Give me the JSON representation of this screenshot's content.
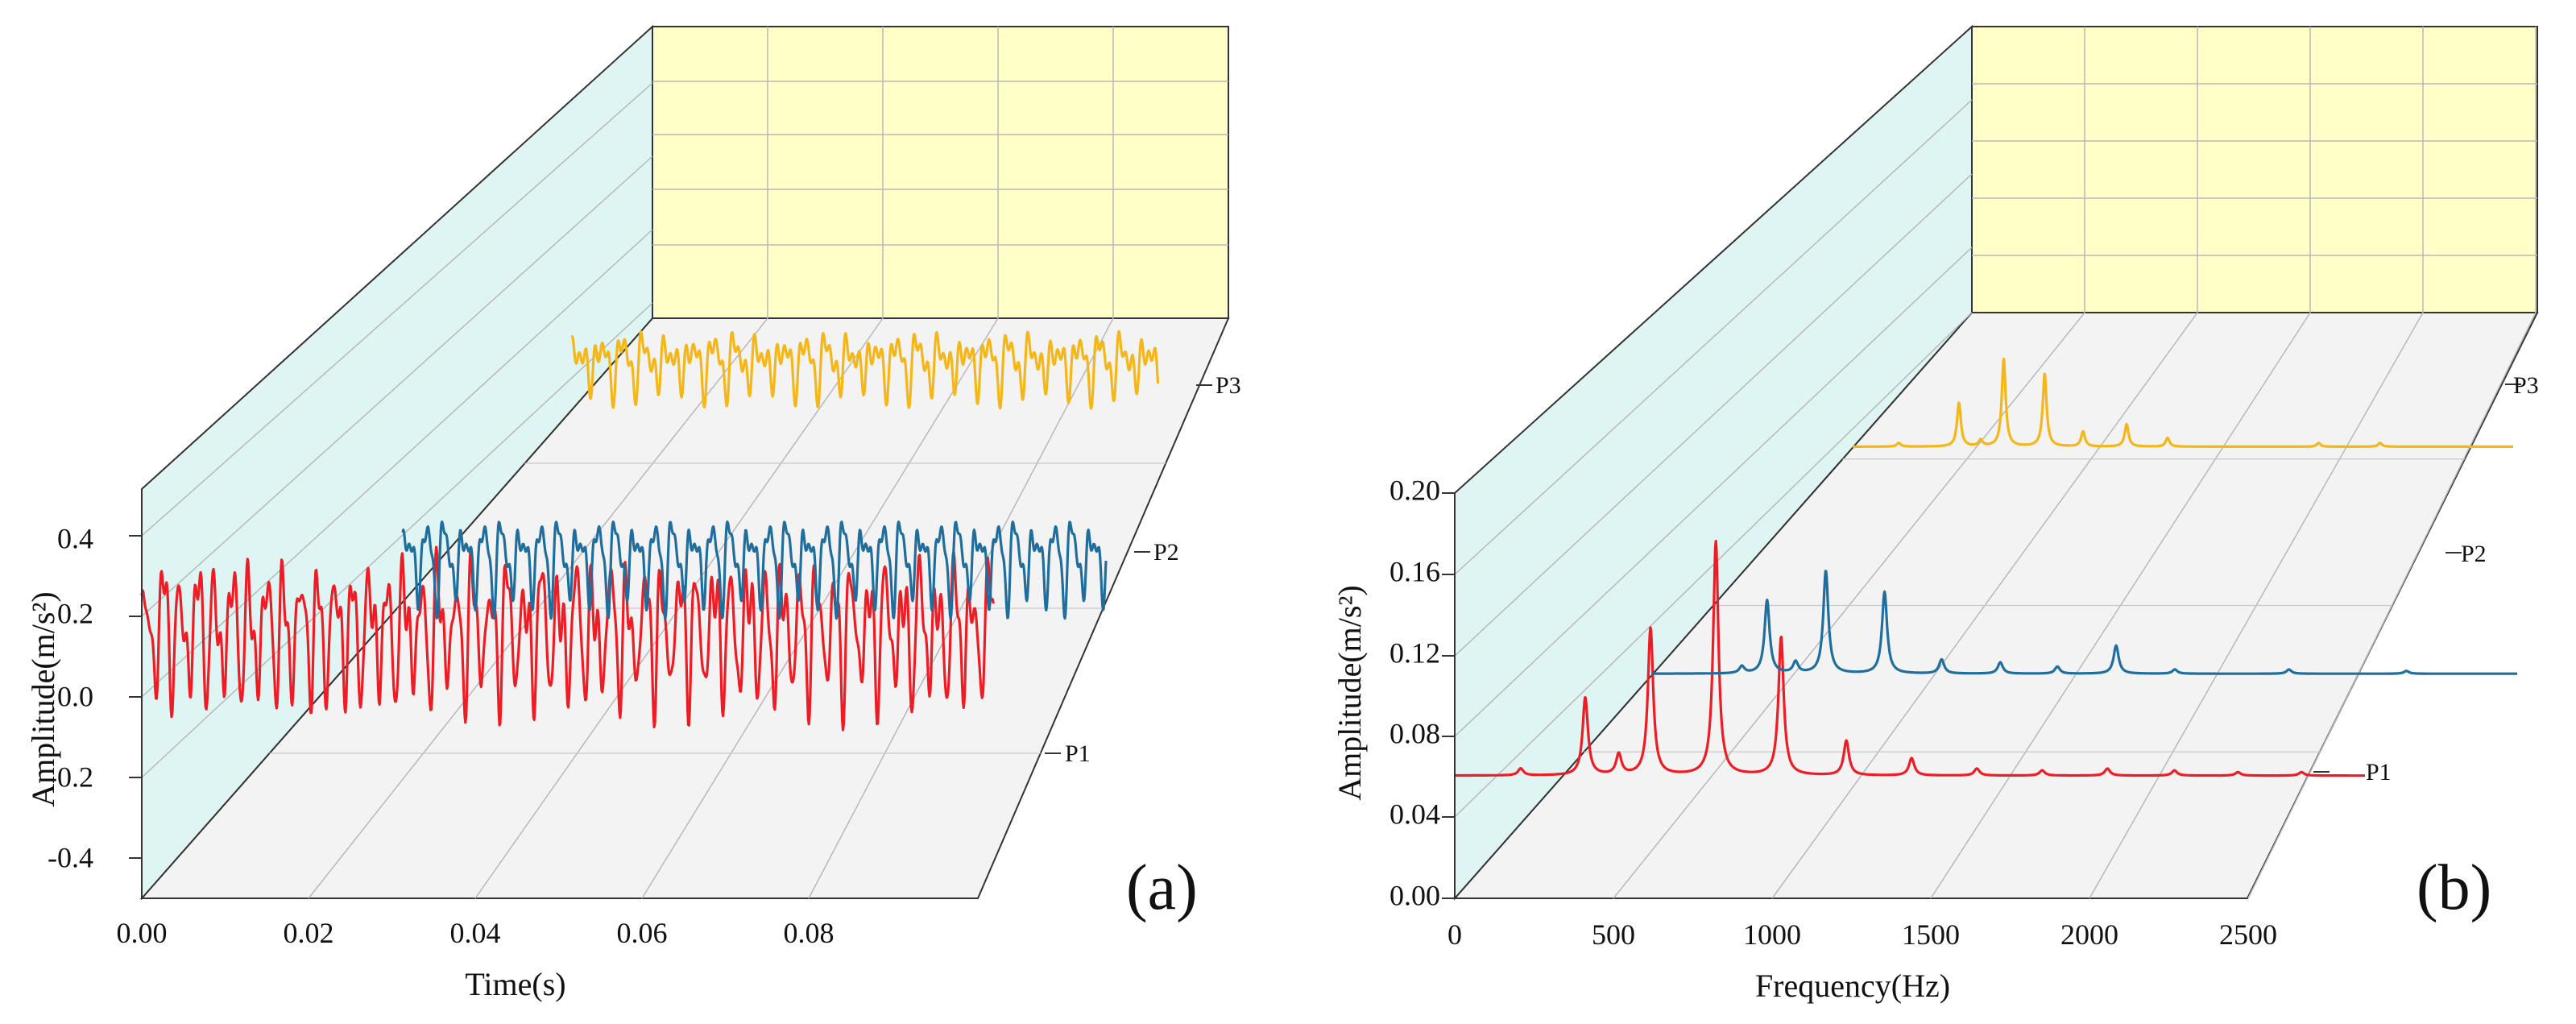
{
  "chart_data": [
    {
      "panel_label": "(a)",
      "type": "line",
      "view": "3d-waterfall",
      "x_label": "Time(s)",
      "y_label": "Amplitude(m/s²)",
      "x_ticks": [
        "0.00",
        "0.02",
        "0.04",
        "0.06",
        "0.08"
      ],
      "y_ticks": [
        "0.4",
        "0.2",
        "0.0",
        "-0.2",
        "-0.4"
      ],
      "z_ticks": [
        "P1",
        "P2",
        "P3"
      ],
      "xlim": [
        0,
        0.1
      ],
      "ylim": [
        -0.5,
        0.5
      ],
      "grid": true,
      "series": [
        {
          "label": "P1",
          "color": "#ee1c24",
          "x_range": [
            0.0,
            0.099
          ],
          "waveform": {
            "offset": 0.22,
            "components": [
              {
                "freq_hz": 500,
                "amplitude": 0.15
              },
              {
                "freq_hz": 1000,
                "amplitude": 0.06
              },
              {
                "freq_hz": 730,
                "amplitude": 0.05
              },
              {
                "freq_hz": 1280,
                "amplitude": 0.04
              },
              {
                "freq_hz": 250,
                "amplitude": 0.02
              }
            ]
          }
        },
        {
          "label": "P2",
          "color": "#1f6e9e",
          "x_range": [
            0.0,
            0.088
          ],
          "waveform": {
            "offset": 0.02,
            "components": [
              {
                "freq_hz": 420,
                "amplitude": 0.1
              },
              {
                "freq_hz": 840,
                "amplitude": 0.05
              },
              {
                "freq_hz": 1260,
                "amplitude": 0.035
              },
              {
                "freq_hz": 560,
                "amplitude": 0.035
              }
            ]
          }
        },
        {
          "label": "P3",
          "color": "#f5b618",
          "x_range": [
            0.0,
            0.078
          ],
          "waveform": {
            "offset": 0.02,
            "components": [
              {
                "freq_hz": 330,
                "amplitude": 0.07
              },
              {
                "freq_hz": 660,
                "amplitude": 0.05
              },
              {
                "freq_hz": 990,
                "amplitude": 0.05
              },
              {
                "freq_hz": 410,
                "amplitude": 0.03
              }
            ]
          }
        }
      ]
    },
    {
      "panel_label": "(b)",
      "type": "line",
      "view": "3d-waterfall",
      "x_label": "Frequency(Hz)",
      "y_label": "Amplitude(m/s²)",
      "x_ticks": [
        "0",
        "500",
        "1000",
        "1500",
        "2000",
        "2500"
      ],
      "y_ticks": [
        "0.20",
        "0.16",
        "0.12",
        "0.08",
        "0.04",
        "0.00"
      ],
      "z_ticks": [
        "P1",
        "P2",
        "P3"
      ],
      "xlim": [
        0,
        2600
      ],
      "ylim": [
        0,
        0.2
      ],
      "grid": true,
      "series": [
        {
          "label": "P1",
          "color": "#ee1c24",
          "freq_range": [
            0,
            2580
          ],
          "baseline": 0.002,
          "peaks": [
            {
              "freq": 187,
              "amp": 0.004
            },
            {
              "freq": 370,
              "amp": 0.045
            },
            {
              "freq": 465,
              "amp": 0.012
            },
            {
              "freq": 555,
              "amp": 0.085
            },
            {
              "freq": 740,
              "amp": 0.135
            },
            {
              "freq": 925,
              "amp": 0.08
            },
            {
              "freq": 1110,
              "amp": 0.02
            },
            {
              "freq": 1295,
              "amp": 0.01
            },
            {
              "freq": 1480,
              "amp": 0.004
            },
            {
              "freq": 1665,
              "amp": 0.003
            },
            {
              "freq": 1850,
              "amp": 0.004
            },
            {
              "freq": 2040,
              "amp": 0.003
            },
            {
              "freq": 2220,
              "amp": 0.002
            },
            {
              "freq": 2400,
              "amp": 0.002
            }
          ]
        },
        {
          "label": "P2",
          "color": "#1f6e9e",
          "freq_range": [
            0,
            2580
          ],
          "baseline": 0.001,
          "peaks": [
            {
              "freq": 270,
              "amp": 0.005
            },
            {
              "freq": 345,
              "amp": 0.052
            },
            {
              "freq": 430,
              "amp": 0.008
            },
            {
              "freq": 520,
              "amp": 0.073
            },
            {
              "freq": 695,
              "amp": 0.058
            },
            {
              "freq": 865,
              "amp": 0.01
            },
            {
              "freq": 1040,
              "amp": 0.008
            },
            {
              "freq": 1210,
              "amp": 0.005
            },
            {
              "freq": 1385,
              "amp": 0.02
            },
            {
              "freq": 1560,
              "amp": 0.003
            },
            {
              "freq": 1900,
              "amp": 0.003
            },
            {
              "freq": 2250,
              "amp": 0.002
            }
          ]
        },
        {
          "label": "P3",
          "color": "#f5b618",
          "freq_range": [
            0,
            2580
          ],
          "baseline": 0.001,
          "peaks": [
            {
              "freq": 180,
              "amp": 0.003
            },
            {
              "freq": 415,
              "amp": 0.035
            },
            {
              "freq": 500,
              "amp": 0.005
            },
            {
              "freq": 590,
              "amp": 0.07
            },
            {
              "freq": 750,
              "amp": 0.058
            },
            {
              "freq": 900,
              "amp": 0.012
            },
            {
              "freq": 1070,
              "amp": 0.018
            },
            {
              "freq": 1230,
              "amp": 0.007
            },
            {
              "freq": 1820,
              "amp": 0.003
            },
            {
              "freq": 2060,
              "amp": 0.003
            }
          ]
        }
      ]
    }
  ]
}
